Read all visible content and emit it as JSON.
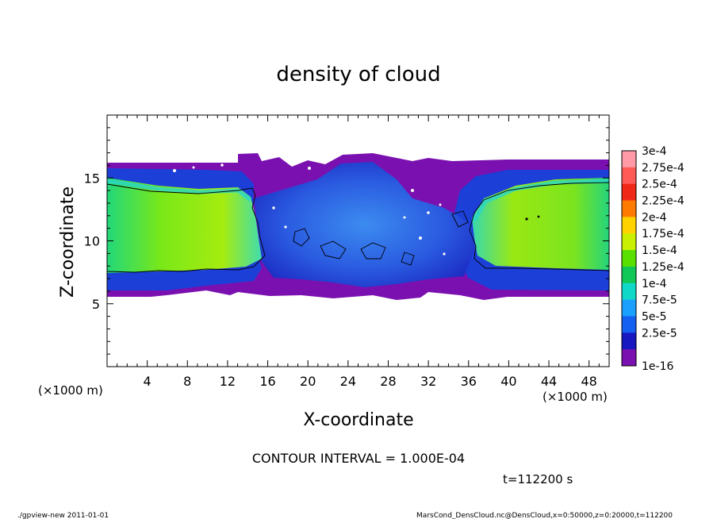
{
  "chart_data": {
    "type": "heatmap",
    "title": "density of cloud",
    "xlabel": "X-coordinate",
    "ylabel": "Z-coordinate",
    "x_unit_left": "(×1000 m)",
    "x_unit_right": "(×1000 m)",
    "x_ticks": [
      "4",
      "8",
      "12",
      "16",
      "20",
      "24",
      "28",
      "32",
      "36",
      "40",
      "44",
      "48"
    ],
    "x_tick_values": [
      4,
      8,
      12,
      16,
      20,
      24,
      28,
      32,
      36,
      40,
      44,
      48
    ],
    "y_ticks": [
      "5",
      "10",
      "15"
    ],
    "y_tick_values": [
      5,
      10,
      15
    ],
    "xlim": [
      0,
      50
    ],
    "ylim": [
      0,
      20
    ],
    "colorbar": {
      "labels": [
        "3e-4",
        "2.75e-4",
        "2.5e-4",
        "2.25e-4",
        "2e-4",
        "1.75e-4",
        "1.5e-4",
        "1.25e-4",
        "1e-4",
        "7.5e-5",
        "5e-5",
        "2.5e-5",
        "1e-16"
      ],
      "colors": [
        "#ff9aa6",
        "#ff5a55",
        "#f02818",
        "#ff7a00",
        "#ffd200",
        "#c8f000",
        "#5ae000",
        "#10c858",
        "#10d8c8",
        "#1aa0ff",
        "#1460f0",
        "#1818c0",
        "#7a10b0"
      ]
    },
    "contour_interval_text": "CONTOUR INTERVAL = 1.000E-04",
    "time_text": "t=112200 s"
  },
  "footer": {
    "left": "./gpview-new  2011-01-01",
    "right": "MarsCond_DensCloud.nc@DensCloud,x=0:50000,z=0:20000,t=112200"
  }
}
